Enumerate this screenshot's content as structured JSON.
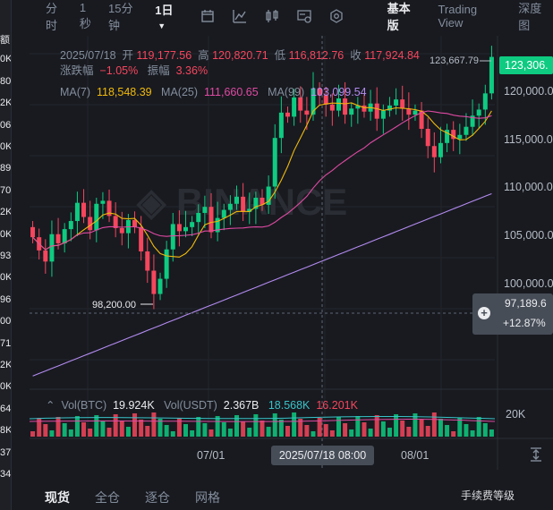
{
  "left_strip": [
    "额",
    "0K",
    "80",
    "2K",
    "06",
    "0K",
    "89",
    "70",
    "2K",
    "0K",
    "93",
    "0K",
    "96",
    "00",
    "71",
    "2K",
    "0K",
    "64",
    "8K",
    "37",
    "34"
  ],
  "toolbar": {
    "timeframes": [
      "分时",
      "1秒",
      "15分钟",
      "1日"
    ],
    "active_timeframe": "1日",
    "icons": [
      "candle-settings-icon",
      "indicator-icon",
      "chart-type-icon",
      "layout-settings-icon",
      "gear-icon"
    ],
    "views": [
      "基本版",
      "Trading View",
      "深度图"
    ]
  },
  "ohlc_legend": {
    "date": "2025/07/18",
    "open_label": "开",
    "open": "119,177.56",
    "high_label": "高",
    "high": "120,820.71",
    "low_label": "低",
    "low": "116,812.76",
    "close_label": "收",
    "close": "117,924.84",
    "change_label": "涨跌幅",
    "change": "−1.05%",
    "amplitude_label": "振幅",
    "amplitude": "3.36%"
  },
  "ma_legend": {
    "ma7_label": "MA(7)",
    "ma7": "118,548.39",
    "ma7_color": "#f0b90b",
    "ma25_label": "MA(25)",
    "ma25": "111,660.65",
    "ma25_color": "#e04aa2",
    "ma99_label": "MA(99)",
    "ma99": "103,099.54",
    "ma99_color": "#b48bf0"
  },
  "vol_legend": {
    "vol_btc_label": "Vol(BTC)",
    "vol_btc": "19.924K",
    "vol_usdt_label": "Vol(USDT)",
    "vol_usdt": "2.367B",
    "vol_ma1": "18.568K",
    "vol_ma2": "16.201K"
  },
  "price_axis": {
    "ticks": [
      "120,000.0",
      "115,000.0",
      "110,000.0",
      "105,000.0",
      "100,000.0"
    ],
    "current_price": "123,306.",
    "crosshair_price": "97,189.6",
    "crosshair_change": "+12.87%",
    "volume_tick": "20K"
  },
  "annotations": {
    "high_marker": "123,667.79",
    "low_marker": "98,200.00"
  },
  "time_axis": {
    "ticks": [
      "07/01",
      "08/01"
    ],
    "crosshair_date": "2025/07/18 08:00"
  },
  "bottom_tabs": [
    "现货",
    "全仓",
    "逐仓",
    "网格"
  ],
  "watermark": "手续费等级",
  "colors": {
    "up": "#0ecb81",
    "down": "#f6465d",
    "background": "#181a20"
  }
}
